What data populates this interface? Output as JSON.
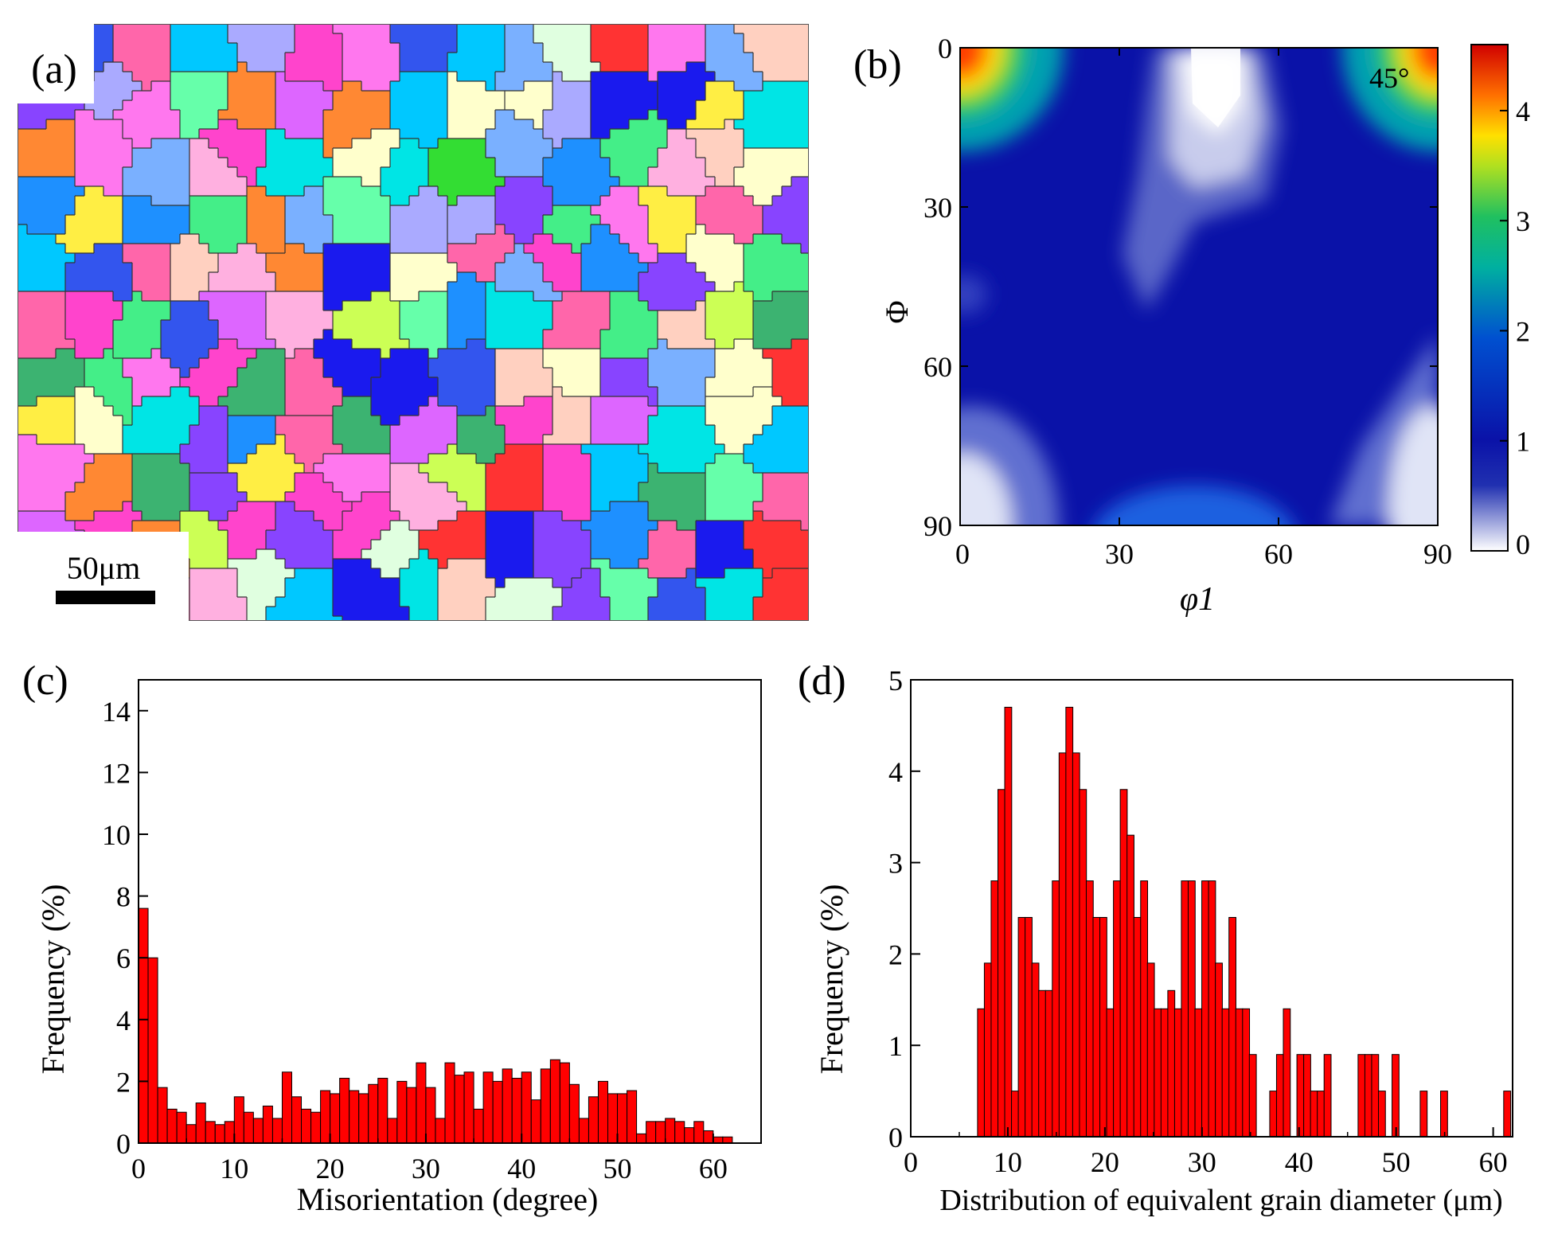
{
  "panels": {
    "a": {
      "label": "(a)",
      "scale_bar_text": "50μm",
      "grain_colors": [
        "#1e90ff",
        "#ff44cc",
        "#33dd33",
        "#ffee44",
        "#8844ff",
        "#00e5e5",
        "#ffb0e0",
        "#ff3333",
        "#aaaaff",
        "#66ffaa",
        "#ff8833",
        "#ccff55",
        "#3355ee",
        "#ffd0c0",
        "#dd66ff",
        "#00c8ff",
        "#ffffcc",
        "#3cb371",
        "#ff66aa",
        "#1a1aee",
        "#e0ffe0",
        "#7ab0ff",
        "#ff77ee",
        "#44ee88"
      ]
    },
    "b": {
      "label": "(b)",
      "angle_annotation": "45°",
      "xlabel": "φ1",
      "ylabel": "Φ",
      "x_ticks": [
        "0",
        "30",
        "60",
        "90"
      ],
      "y_ticks": [
        "0",
        "30",
        "60",
        "90"
      ],
      "colorbar_ticks": [
        "0",
        "1",
        "2",
        "3",
        "4"
      ],
      "colorbar_range": [
        0,
        4.6
      ],
      "colors": {
        "red": "#ff0000",
        "blue": "#0a12a8",
        "white": "#ffffff"
      }
    }
  },
  "chart_data": [
    {
      "type": "bar",
      "label": "(c)",
      "xlabel": "Misorientation (degree)",
      "ylabel": "Frequency (%)",
      "xlim": [
        0,
        65
      ],
      "ylim": [
        0,
        15
      ],
      "x_ticks": [
        "0",
        "10",
        "20",
        "30",
        "40",
        "50",
        "60"
      ],
      "y_ticks": [
        "0",
        "2",
        "4",
        "6",
        "8",
        "10",
        "12",
        "14"
      ],
      "bin_width": 1,
      "x": [
        1,
        2,
        3,
        4,
        5,
        6,
        7,
        8,
        9,
        10,
        11,
        12,
        13,
        14,
        15,
        16,
        17,
        18,
        19,
        20,
        21,
        22,
        23,
        24,
        25,
        26,
        27,
        28,
        29,
        30,
        31,
        32,
        33,
        34,
        35,
        36,
        37,
        38,
        39,
        40,
        41,
        42,
        43,
        44,
        45,
        46,
        47,
        48,
        49,
        50,
        51,
        52,
        53,
        54,
        55,
        56,
        57,
        58,
        59,
        60,
        61,
        62
      ],
      "values": [
        7.6,
        6.0,
        1.8,
        1.1,
        1.0,
        0.6,
        1.3,
        0.7,
        0.6,
        0.7,
        1.5,
        1.0,
        0.8,
        1.2,
        0.8,
        2.3,
        1.5,
        1.1,
        1.0,
        1.7,
        1.6,
        2.1,
        1.7,
        1.6,
        1.9,
        2.1,
        0.8,
        2.0,
        1.8,
        2.6,
        1.8,
        0.8,
        2.6,
        2.2,
        2.3,
        1.1,
        2.3,
        2.0,
        2.4,
        2.1,
        2.3,
        1.4,
        2.4,
        2.7,
        2.6,
        1.9,
        0.8,
        1.5,
        2.0,
        1.6,
        1.6,
        1.7,
        0.3,
        0.7,
        0.7,
        0.8,
        0.7,
        0.5,
        0.7,
        0.4,
        0.2,
        0.2
      ],
      "color": "#ff0000"
    },
    {
      "type": "bar",
      "label": "(d)",
      "xlabel": "Distribution of equivalent grain diameter (μm)",
      "ylabel": "Frequency (%)",
      "xlim": [
        0,
        62
      ],
      "ylim": [
        0,
        5
      ],
      "x_ticks": [
        "0",
        "10",
        "20",
        "30",
        "40",
        "50",
        "60"
      ],
      "y_ticks": [
        "0",
        "1",
        "2",
        "3",
        "4",
        "5"
      ],
      "bin_width": 0.72,
      "x": [
        7.6,
        8.3,
        9.0,
        9.7,
        10.4,
        11.1,
        11.8,
        12.5,
        13.2,
        13.9,
        14.6,
        15.3,
        16.0,
        16.7,
        17.4,
        18.1,
        18.8,
        19.5,
        20.2,
        20.9,
        21.6,
        22.3,
        23.0,
        23.7,
        24.4,
        25.1,
        25.8,
        26.5,
        27.2,
        27.9,
        28.6,
        29.3,
        30.0,
        30.7,
        31.4,
        32.1,
        32.8,
        33.5,
        34.2,
        34.9,
        35.6,
        37.7,
        38.4,
        39.1,
        40.5,
        41.2,
        41.9,
        42.6,
        43.3,
        46.8,
        47.5,
        48.2,
        48.9,
        50.3,
        53.2,
        55.3,
        61.8
      ],
      "values": [
        1.4,
        1.9,
        2.8,
        3.8,
        4.7,
        0.5,
        2.4,
        2.4,
        1.9,
        1.6,
        1.6,
        2.8,
        4.2,
        4.7,
        4.2,
        3.8,
        2.8,
        2.4,
        2.4,
        1.4,
        2.8,
        3.8,
        3.3,
        2.4,
        2.8,
        1.9,
        1.4,
        1.4,
        1.6,
        1.4,
        2.8,
        2.8,
        1.4,
        2.8,
        2.8,
        1.9,
        1.4,
        2.4,
        1.4,
        1.4,
        0.9,
        0.5,
        0.9,
        1.4,
        0.9,
        0.9,
        0.5,
        0.5,
        0.9,
        0.9,
        0.9,
        0.9,
        0.5,
        0.9,
        0.5,
        0.5,
        0.5
      ],
      "color": "#ff0000"
    }
  ]
}
